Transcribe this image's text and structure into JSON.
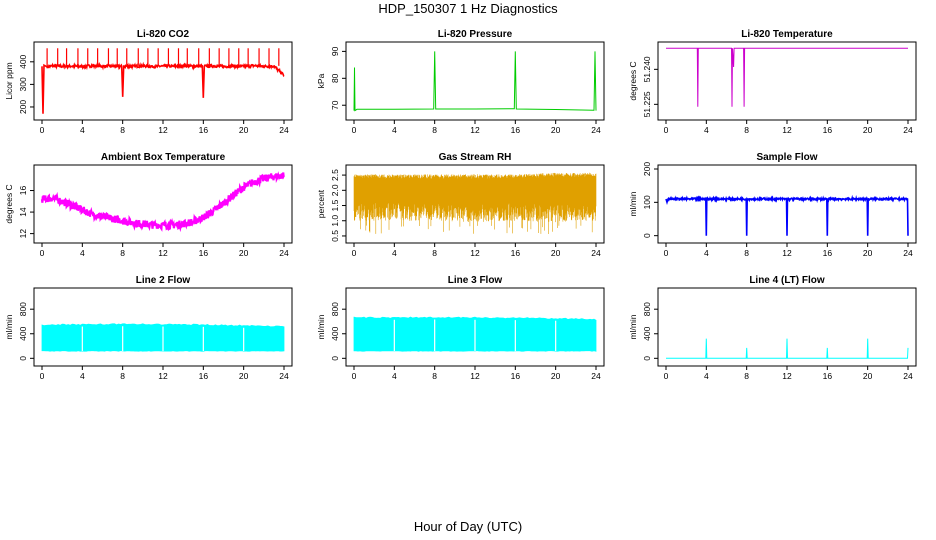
{
  "figure": {
    "title": "HDP_150307  1 Hz Diagnostics",
    "xlabel": "Hour of Day (UTC)"
  },
  "chart_data": [
    {
      "type": "line",
      "title": "Li-820 CO2",
      "ylabel": "Licor ppm",
      "color": "#ff0000",
      "xlim": [
        0,
        24
      ],
      "ylim": [
        160,
        470
      ],
      "xticks": [
        "0",
        "4",
        "8",
        "12",
        "16",
        "20",
        "24"
      ],
      "yticks": [
        "200",
        "300",
        "400"
      ],
      "series": [
        {
          "x": [
            0.0,
            0.1,
            0.2,
            0.5,
            1,
            2,
            3,
            4,
            5,
            6,
            7,
            7.9,
            8.0,
            8.1,
            9,
            10,
            11,
            12,
            13,
            14,
            15,
            15.9,
            16.0,
            16.1,
            17,
            18,
            19,
            20,
            21,
            22,
            23,
            24
          ],
          "y": [
            380,
            170,
            385,
            378,
            382,
            380,
            381,
            379,
            383,
            380,
            381,
            380,
            245,
            381,
            380,
            382,
            379,
            381,
            380,
            383,
            380,
            381,
            240,
            380,
            382,
            379,
            381,
            380,
            383,
            380,
            381,
            340
          ]
        }
      ],
      "spikes_to": 460
    },
    {
      "type": "line",
      "title": "Li-820 Pressure",
      "ylabel": "kPa",
      "color": "#00cc00",
      "xlim": [
        0,
        24
      ],
      "ylim": [
        66,
        92
      ],
      "xticks": [
        "0",
        "4",
        "8",
        "12",
        "16",
        "20",
        "24"
      ],
      "yticks": [
        "70",
        "80",
        "90"
      ],
      "series": [
        {
          "x": [
            0,
            0.05,
            0.1,
            0.3,
            1,
            4,
            7.9,
            8,
            8.1,
            12,
            15.9,
            16,
            16.1,
            20,
            23.8,
            23.9,
            24
          ],
          "y": [
            68,
            84,
            68,
            68.5,
            68.5,
            68.5,
            68.6,
            90,
            68.6,
            68.6,
            68.7,
            90,
            68.6,
            68.4,
            68.1,
            90,
            68
          ]
        }
      ]
    },
    {
      "type": "line",
      "title": "Li-820 Temperature",
      "ylabel": "degrees C",
      "color": "#cc00cc",
      "xlim": [
        0,
        24
      ],
      "ylim": [
        51.22,
        51.25
      ],
      "xticks": [
        "0",
        "4",
        "8",
        "12",
        "16",
        "20",
        "24"
      ],
      "yticks": [
        "51.225",
        "51.240"
      ],
      "series": [
        {
          "x": [
            0,
            3.1,
            3.15,
            3.2,
            6.5,
            6.55,
            6.6,
            6.7,
            6.75,
            6.8,
            7.7,
            7.75,
            7.8,
            24
          ],
          "y": [
            51.249,
            51.249,
            51.224,
            51.249,
            51.249,
            51.224,
            51.249,
            51.241,
            51.249,
            51.249,
            51.249,
            51.224,
            51.249,
            51.249
          ]
        }
      ]
    },
    {
      "type": "line",
      "title": "Ambient Box Temperature",
      "ylabel": "degrees C",
      "color": "#ff00ff",
      "xlim": [
        0,
        24
      ],
      "ylim": [
        11.5,
        18
      ],
      "xticks": [
        "0",
        "4",
        "8",
        "12",
        "16",
        "20",
        "24"
      ],
      "yticks": [
        "12",
        "14",
        "16"
      ],
      "series": [
        {
          "x": [
            0,
            1,
            2,
            3,
            4,
            5,
            6,
            7,
            8,
            9,
            10,
            11,
            12,
            13,
            14,
            15,
            16,
            17,
            18,
            19,
            20,
            21,
            22,
            23,
            24
          ],
          "y": [
            15.2,
            15.3,
            15.0,
            14.6,
            14.2,
            13.8,
            13.6,
            13.4,
            13.2,
            13.0,
            12.9,
            12.8,
            12.8,
            12.8,
            12.9,
            13.1,
            13.5,
            14.1,
            14.8,
            15.6,
            16.3,
            16.8,
            17.1,
            17.3,
            17.4
          ]
        }
      ]
    },
    {
      "type": "line",
      "title": "Gas Stream RH",
      "ylabel": "percent",
      "color": "#e0a000",
      "xlim": [
        0,
        24
      ],
      "ylim": [
        0.4,
        2.7
      ],
      "xticks": [
        "0",
        "4",
        "8",
        "12",
        "16",
        "20",
        "24"
      ],
      "yticks": [
        "0.5",
        "1.0",
        "1.5",
        "2.0",
        "2.5"
      ],
      "series": [
        {
          "x": [
            0,
            4,
            8,
            12,
            16,
            20,
            24
          ],
          "y": [
            2.45,
            2.45,
            2.45,
            2.45,
            2.45,
            2.5,
            2.5
          ]
        },
        {
          "x": [
            0,
            4,
            8,
            12,
            16,
            20,
            24
          ],
          "y": [
            1.0,
            1.0,
            1.0,
            0.95,
            1.0,
            0.95,
            1.0
          ]
        }
      ]
    },
    {
      "type": "line",
      "title": "Sample Flow",
      "ylabel": "ml/min",
      "color": "#0000ff",
      "xlim": [
        0,
        24
      ],
      "ylim": [
        -10,
        200
      ],
      "xticks": [
        "0",
        "4",
        "8",
        "12",
        "16",
        "20",
        "24"
      ],
      "yticks": [
        "0",
        "100",
        "200"
      ],
      "series": [
        {
          "x": [
            0,
            0.1,
            0.2,
            3.95,
            4,
            4.05,
            7.95,
            8,
            8.05,
            11.95,
            12,
            12.05,
            15.95,
            16,
            16.05,
            19.95,
            20,
            20.05,
            23.95,
            24
          ],
          "y": [
            110,
            100,
            110,
            110,
            0,
            110,
            110,
            0,
            110,
            110,
            0,
            110,
            110,
            0,
            110,
            110,
            0,
            110,
            110,
            0
          ]
        }
      ]
    },
    {
      "type": "area",
      "title": "Line 2 Flow",
      "ylabel": "ml/min",
      "color": "#00ffff",
      "xlim": [
        0,
        24
      ],
      "ylim": [
        -60,
        1080
      ],
      "xticks": [
        "0",
        "4",
        "8",
        "12",
        "16",
        "20",
        "24"
      ],
      "yticks": [
        "0",
        "400",
        "800"
      ],
      "series": [
        {
          "x": [
            0,
            4,
            8,
            12,
            16,
            20,
            24
          ],
          "y": [
            540,
            550,
            555,
            550,
            545,
            530,
            520
          ]
        },
        {
          "x": [
            0,
            4,
            8,
            12,
            16,
            20,
            24
          ],
          "y": [
            120,
            120,
            120,
            120,
            120,
            120,
            120
          ]
        }
      ],
      "gaps": [
        4,
        8,
        12,
        16,
        20
      ]
    },
    {
      "type": "area",
      "title": "Line 3 Flow",
      "ylabel": "ml/min",
      "color": "#00ffff",
      "xlim": [
        0,
        24
      ],
      "ylim": [
        -60,
        1080
      ],
      "xticks": [
        "0",
        "4",
        "8",
        "12",
        "16",
        "20",
        "24"
      ],
      "yticks": [
        "0",
        "400",
        "800"
      ],
      "series": [
        {
          "x": [
            0,
            4,
            8,
            12,
            16,
            20,
            24
          ],
          "y": [
            660,
            660,
            665,
            660,
            655,
            645,
            630
          ]
        },
        {
          "x": [
            0,
            4,
            8,
            12,
            16,
            20,
            24
          ],
          "y": [
            120,
            120,
            120,
            120,
            120,
            120,
            120
          ]
        }
      ],
      "gaps": [
        4,
        8,
        12,
        16,
        20
      ]
    },
    {
      "type": "line",
      "title": "Line 4 (LT) Flow",
      "ylabel": "ml/min",
      "color": "#00ffff",
      "xlim": [
        0,
        24
      ],
      "ylim": [
        -60,
        1080
      ],
      "xticks": [
        "0",
        "4",
        "8",
        "12",
        "16",
        "20",
        "24"
      ],
      "yticks": [
        "0",
        "400",
        "800"
      ],
      "series": [
        {
          "x": [
            0,
            3.95,
            4,
            4.05,
            7.95,
            8,
            8.05,
            11.95,
            12,
            12.05,
            15.95,
            16,
            16.05,
            19.95,
            20,
            20.05,
            23.95,
            24
          ],
          "y": [
            0,
            0,
            320,
            0,
            0,
            170,
            0,
            0,
            320,
            0,
            0,
            170,
            0,
            0,
            320,
            0,
            0,
            170
          ]
        }
      ]
    }
  ]
}
